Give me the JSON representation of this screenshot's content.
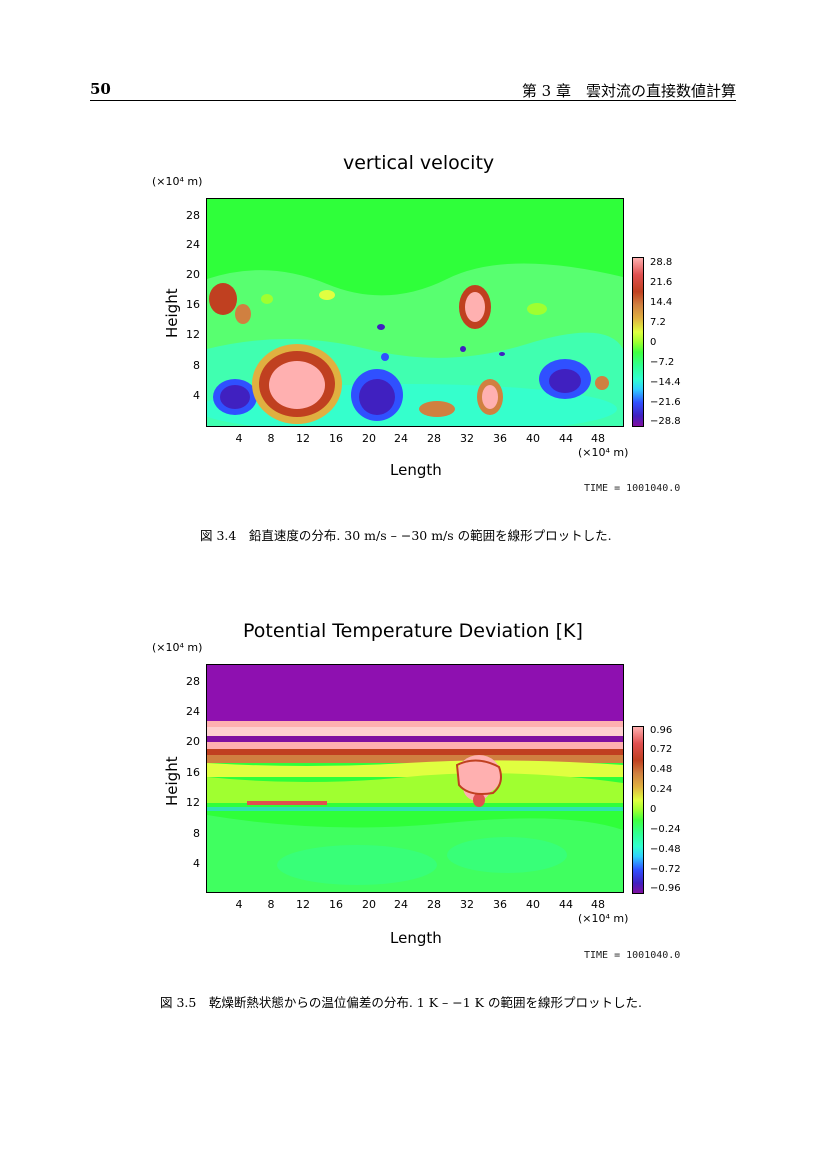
{
  "header": {
    "page_number": "50",
    "chapter": "第 3 章　雲対流の直接数値計算"
  },
  "figures": [
    {
      "title": "vertical velocity",
      "scale_label": "(×10⁴ m)",
      "ylabel": "Height",
      "xlabel": "Length",
      "x_scale_label": "(×10⁴ m)",
      "yticks": [
        "28",
        "24",
        "20",
        "16",
        "12",
        "8",
        "4"
      ],
      "xticks": [
        "4",
        "8",
        "12",
        "16",
        "20",
        "24",
        "28",
        "32",
        "36",
        "40",
        "44",
        "48"
      ],
      "colorbar_labels": [
        "28.8",
        "21.6",
        "14.4",
        "7.2",
        "0",
        "−7.2",
        "−14.4",
        "−21.6",
        "−28.8"
      ],
      "time": "TIME = 1001040.0",
      "caption": "図 3.4　鉛直速度の分布. 30 m/s – −30 m/s の範囲を線形プロットした."
    },
    {
      "title": "Potential Temperature Deviation [K]",
      "scale_label": "(×10⁴ m)",
      "ylabel": "Height",
      "xlabel": "Length",
      "x_scale_label": "(×10⁴ m)",
      "yticks": [
        "28",
        "24",
        "20",
        "16",
        "12",
        "8",
        "4"
      ],
      "xticks": [
        "4",
        "8",
        "12",
        "16",
        "20",
        "24",
        "28",
        "32",
        "36",
        "40",
        "44",
        "48"
      ],
      "colorbar_labels": [
        "0.96",
        "0.72",
        "0.48",
        "0.24",
        "0",
        "−0.24",
        "−0.48",
        "−0.72",
        "−0.96"
      ],
      "time": "TIME = 1001040.0",
      "caption": "図 3.5　乾燥断熱状態からの温位偏差の分布. 1 K – −1 K の範囲を線形プロットした."
    }
  ],
  "colors": {
    "background_field": "#2fff3a",
    "colorbar": [
      "#ffb0b0",
      "#e05050",
      "#c04020",
      "#d08040",
      "#e0b040",
      "#e0ff40",
      "#a0ff30",
      "#40ff40",
      "#30ff90",
      "#30ffd0",
      "#30d0ff",
      "#3050ff",
      "#4020c0",
      "#8010a0"
    ]
  }
}
